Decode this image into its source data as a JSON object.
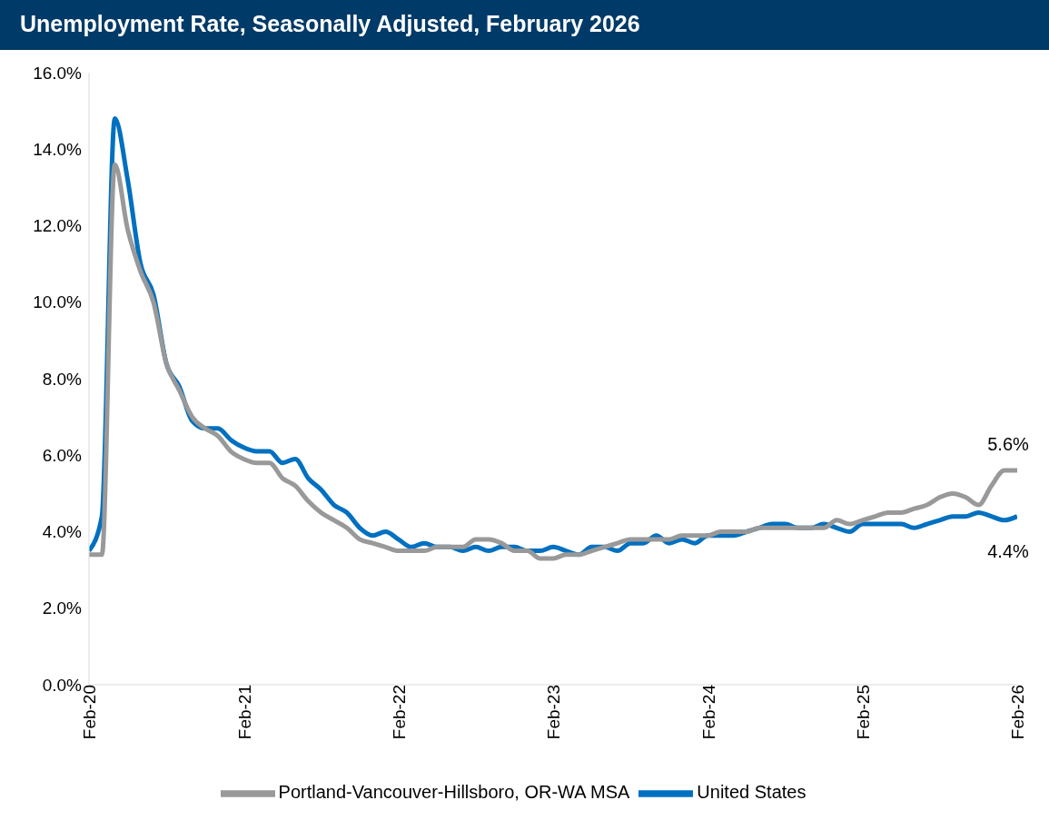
{
  "chart_data": {
    "type": "line",
    "title": "Unemployment Rate, Seasonally Adjusted, February 2026",
    "x": [
      "2020-02",
      "2020-03",
      "2020-04",
      "2020-05",
      "2020-06",
      "2020-07",
      "2020-08",
      "2020-09",
      "2020-10",
      "2020-11",
      "2020-12",
      "2021-01",
      "2021-02",
      "2021-03",
      "2021-04",
      "2021-05",
      "2021-06",
      "2021-07",
      "2021-08",
      "2021-09",
      "2021-10",
      "2021-11",
      "2021-12",
      "2022-01",
      "2022-02",
      "2022-03",
      "2022-04",
      "2022-05",
      "2022-06",
      "2022-07",
      "2022-08",
      "2022-09",
      "2022-10",
      "2022-11",
      "2022-12",
      "2023-01",
      "2023-02",
      "2023-03",
      "2023-04",
      "2023-05",
      "2023-06",
      "2023-07",
      "2023-08",
      "2023-09",
      "2023-10",
      "2023-11",
      "2023-12",
      "2024-01",
      "2024-02",
      "2024-03",
      "2024-04",
      "2024-05",
      "2024-06",
      "2024-07",
      "2024-08",
      "2024-09",
      "2024-10",
      "2024-11",
      "2024-12",
      "2025-01",
      "2025-02",
      "2025-03",
      "2025-04",
      "2025-05",
      "2025-06",
      "2025-07",
      "2025-08",
      "2025-09",
      "2025-10",
      "2025-11",
      "2025-12",
      "2026-01",
      "2026-02"
    ],
    "series": [
      {
        "name": "United States",
        "color": "#0070c0",
        "values": [
          3.5,
          4.4,
          14.8,
          13.2,
          11.0,
          10.2,
          8.4,
          7.8,
          6.9,
          6.7,
          6.7,
          6.4,
          6.2,
          6.1,
          6.1,
          5.8,
          5.9,
          5.4,
          5.1,
          4.7,
          4.5,
          4.1,
          3.9,
          4.0,
          3.8,
          3.6,
          3.7,
          3.6,
          3.6,
          3.5,
          3.6,
          3.5,
          3.6,
          3.6,
          3.5,
          3.5,
          3.6,
          3.5,
          3.4,
          3.6,
          3.6,
          3.5,
          3.7,
          3.7,
          3.9,
          3.7,
          3.8,
          3.7,
          3.9,
          3.9,
          3.9,
          4.0,
          4.1,
          4.2,
          4.2,
          4.1,
          4.1,
          4.2,
          4.1,
          4.0,
          4.2,
          4.2,
          4.2,
          4.2,
          4.1,
          4.2,
          4.3,
          4.4,
          4.4,
          4.5,
          4.4,
          4.3,
          4.4
        ]
      },
      {
        "name": "Portland-Vancouver-Hillsboro, OR-WA MSA",
        "color": "#999999",
        "values": [
          3.4,
          3.4,
          13.6,
          11.9,
          10.8,
          10.0,
          8.4,
          7.7,
          7.0,
          6.7,
          6.5,
          6.1,
          5.9,
          5.8,
          5.8,
          5.4,
          5.2,
          4.8,
          4.5,
          4.3,
          4.1,
          3.8,
          3.7,
          3.6,
          3.5,
          3.5,
          3.5,
          3.6,
          3.6,
          3.6,
          3.8,
          3.8,
          3.7,
          3.5,
          3.5,
          3.3,
          3.3,
          3.4,
          3.4,
          3.5,
          3.6,
          3.7,
          3.8,
          3.8,
          3.8,
          3.8,
          3.9,
          3.9,
          3.9,
          4.0,
          4.0,
          4.0,
          4.1,
          4.1,
          4.1,
          4.1,
          4.1,
          4.1,
          4.3,
          4.2,
          4.3,
          4.4,
          4.5,
          4.5,
          4.6,
          4.7,
          4.9,
          5.0,
          4.9,
          4.7,
          5.2,
          5.6,
          5.6
        ]
      }
    ],
    "xlim": [
      "2020-02",
      "2026-02"
    ],
    "xticks": [
      {
        "value": "2020-02",
        "label": "Feb-20"
      },
      {
        "value": "2021-02",
        "label": "Feb-21"
      },
      {
        "value": "2022-02",
        "label": "Feb-22"
      },
      {
        "value": "2023-02",
        "label": "Feb-23"
      },
      {
        "value": "2024-02",
        "label": "Feb-24"
      },
      {
        "value": "2025-02",
        "label": "Feb-25"
      },
      {
        "value": "2026-02",
        "label": "Feb-26"
      }
    ],
    "ylim": [
      0,
      16
    ],
    "yticks": [
      {
        "value": 0,
        "label": "0.0%"
      },
      {
        "value": 2,
        "label": "2.0%"
      },
      {
        "value": 4,
        "label": "4.0%"
      },
      {
        "value": 6,
        "label": "6.0%"
      },
      {
        "value": 8,
        "label": "8.0%"
      },
      {
        "value": 10,
        "label": "10.0%"
      },
      {
        "value": 12,
        "label": "12.0%"
      },
      {
        "value": 14,
        "label": "14.0%"
      },
      {
        "value": 16,
        "label": "16.0%"
      }
    ],
    "grid": false,
    "legend": "bottom",
    "marker": "none",
    "line_style": "solid",
    "annotations": [
      {
        "text": "5.6%",
        "x": "2026-02",
        "y": 5.6
      },
      {
        "text": "4.4%",
        "x": "2026-02",
        "y": 4.4
      }
    ]
  }
}
